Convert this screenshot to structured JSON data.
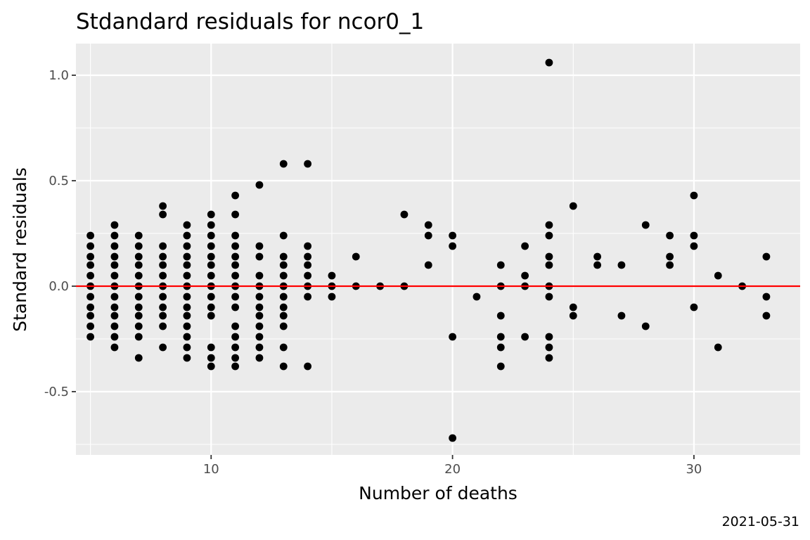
{
  "chart_data": {
    "type": "scatter",
    "title": "Stdandard residuals for ncor0_1",
    "xlabel": "Number of deaths",
    "ylabel": "Standard residuals",
    "caption": "2021-05-31",
    "xlim": [
      4.4,
      34.4
    ],
    "ylim": [
      -0.8,
      1.15
    ],
    "x_ticks": [
      10,
      20,
      30
    ],
    "y_ticks": [
      -0.5,
      0.0,
      0.5,
      1.0
    ],
    "y_tick_labels": [
      "-0.5",
      "0.0",
      "0.5",
      "1.0"
    ],
    "grid": true,
    "background": "#ebebeb",
    "point_color": "#000000",
    "reference_line": {
      "y": 0,
      "color": "#ff0000"
    },
    "points": [
      [
        5,
        0.24
      ],
      [
        5,
        0.19
      ],
      [
        5,
        0.14
      ],
      [
        5,
        0.1
      ],
      [
        5,
        0.05
      ],
      [
        5,
        0.0
      ],
      [
        5,
        -0.05
      ],
      [
        5,
        -0.1
      ],
      [
        5,
        -0.14
      ],
      [
        5,
        -0.19
      ],
      [
        5,
        -0.24
      ],
      [
        6,
        0.29
      ],
      [
        6,
        0.24
      ],
      [
        6,
        0.19
      ],
      [
        6,
        0.14
      ],
      [
        6,
        0.1
      ],
      [
        6,
        0.05
      ],
      [
        6,
        0.0
      ],
      [
        6,
        -0.05
      ],
      [
        6,
        -0.1
      ],
      [
        6,
        -0.14
      ],
      [
        6,
        -0.19
      ],
      [
        6,
        -0.24
      ],
      [
        6,
        -0.29
      ],
      [
        7,
        0.24
      ],
      [
        7,
        0.19
      ],
      [
        7,
        0.14
      ],
      [
        7,
        0.1
      ],
      [
        7,
        0.05
      ],
      [
        7,
        0.0
      ],
      [
        7,
        -0.05
      ],
      [
        7,
        -0.1
      ],
      [
        7,
        -0.14
      ],
      [
        7,
        -0.19
      ],
      [
        7,
        -0.24
      ],
      [
        7,
        -0.34
      ],
      [
        8,
        0.38
      ],
      [
        8,
        0.34
      ],
      [
        8,
        0.19
      ],
      [
        8,
        0.14
      ],
      [
        8,
        0.1
      ],
      [
        8,
        0.05
      ],
      [
        8,
        0.0
      ],
      [
        8,
        -0.05
      ],
      [
        8,
        -0.1
      ],
      [
        8,
        -0.14
      ],
      [
        8,
        -0.19
      ],
      [
        8,
        -0.29
      ],
      [
        9,
        0.29
      ],
      [
        9,
        0.24
      ],
      [
        9,
        0.19
      ],
      [
        9,
        0.14
      ],
      [
        9,
        0.1
      ],
      [
        9,
        0.05
      ],
      [
        9,
        0.0
      ],
      [
        9,
        -0.05
      ],
      [
        9,
        -0.1
      ],
      [
        9,
        -0.14
      ],
      [
        9,
        -0.19
      ],
      [
        9,
        -0.24
      ],
      [
        9,
        -0.29
      ],
      [
        9,
        -0.34
      ],
      [
        10,
        0.34
      ],
      [
        10,
        0.29
      ],
      [
        10,
        0.24
      ],
      [
        10,
        0.19
      ],
      [
        10,
        0.14
      ],
      [
        10,
        0.1
      ],
      [
        10,
        0.05
      ],
      [
        10,
        0.0
      ],
      [
        10,
        -0.05
      ],
      [
        10,
        -0.1
      ],
      [
        10,
        -0.14
      ],
      [
        10,
        -0.29
      ],
      [
        10,
        -0.34
      ],
      [
        10,
        -0.38
      ],
      [
        11,
        0.43
      ],
      [
        11,
        0.34
      ],
      [
        11,
        0.24
      ],
      [
        11,
        0.19
      ],
      [
        11,
        0.14
      ],
      [
        11,
        0.1
      ],
      [
        11,
        0.05
      ],
      [
        11,
        0.0
      ],
      [
        11,
        -0.05
      ],
      [
        11,
        -0.1
      ],
      [
        11,
        -0.19
      ],
      [
        11,
        -0.24
      ],
      [
        11,
        -0.29
      ],
      [
        11,
        -0.34
      ],
      [
        11,
        -0.38
      ],
      [
        12,
        0.48
      ],
      [
        12,
        0.19
      ],
      [
        12,
        0.14
      ],
      [
        12,
        0.05
      ],
      [
        12,
        0.0
      ],
      [
        12,
        -0.05
      ],
      [
        12,
        -0.1
      ],
      [
        12,
        -0.14
      ],
      [
        12,
        -0.19
      ],
      [
        12,
        -0.24
      ],
      [
        12,
        -0.29
      ],
      [
        12,
        -0.34
      ],
      [
        13,
        0.58
      ],
      [
        13,
        0.24
      ],
      [
        13,
        0.14
      ],
      [
        13,
        0.1
      ],
      [
        13,
        0.05
      ],
      [
        13,
        0.0
      ],
      [
        13,
        -0.05
      ],
      [
        13,
        -0.1
      ],
      [
        13,
        -0.14
      ],
      [
        13,
        -0.19
      ],
      [
        13,
        -0.29
      ],
      [
        13,
        -0.38
      ],
      [
        14,
        0.58
      ],
      [
        14,
        0.19
      ],
      [
        14,
        0.14
      ],
      [
        14,
        0.1
      ],
      [
        14,
        0.05
      ],
      [
        14,
        0.0
      ],
      [
        14,
        -0.05
      ],
      [
        14,
        -0.38
      ],
      [
        15,
        0.05
      ],
      [
        15,
        0.0
      ],
      [
        15,
        -0.05
      ],
      [
        16,
        0.14
      ],
      [
        16,
        0.0
      ],
      [
        17,
        0.0
      ],
      [
        18,
        0.34
      ],
      [
        18,
        0.0
      ],
      [
        19,
        0.29
      ],
      [
        19,
        0.24
      ],
      [
        19,
        0.1
      ],
      [
        20,
        0.24
      ],
      [
        20,
        0.19
      ],
      [
        20,
        -0.24
      ],
      [
        20,
        -0.72
      ],
      [
        21,
        -0.05
      ],
      [
        22,
        0.1
      ],
      [
        22,
        0.0
      ],
      [
        22,
        -0.14
      ],
      [
        22,
        -0.24
      ],
      [
        22,
        -0.29
      ],
      [
        22,
        -0.38
      ],
      [
        23,
        0.19
      ],
      [
        23,
        0.05
      ],
      [
        23,
        0.0
      ],
      [
        23,
        -0.24
      ],
      [
        24,
        1.06
      ],
      [
        24,
        0.29
      ],
      [
        24,
        0.24
      ],
      [
        24,
        0.14
      ],
      [
        24,
        0.1
      ],
      [
        24,
        0.0
      ],
      [
        24,
        -0.05
      ],
      [
        24,
        -0.24
      ],
      [
        24,
        -0.29
      ],
      [
        24,
        -0.34
      ],
      [
        25,
        0.38
      ],
      [
        25,
        -0.1
      ],
      [
        25,
        -0.14
      ],
      [
        26,
        0.14
      ],
      [
        26,
        0.1
      ],
      [
        27,
        0.1
      ],
      [
        27,
        -0.14
      ],
      [
        28,
        0.29
      ],
      [
        28,
        -0.19
      ],
      [
        29,
        0.24
      ],
      [
        29,
        0.14
      ],
      [
        29,
        0.1
      ],
      [
        30,
        0.43
      ],
      [
        30,
        0.24
      ],
      [
        30,
        0.19
      ],
      [
        30,
        -0.1
      ],
      [
        31,
        0.05
      ],
      [
        31,
        -0.29
      ],
      [
        32,
        0.0
      ],
      [
        33,
        0.14
      ],
      [
        33,
        -0.05
      ],
      [
        33,
        -0.14
      ]
    ]
  }
}
